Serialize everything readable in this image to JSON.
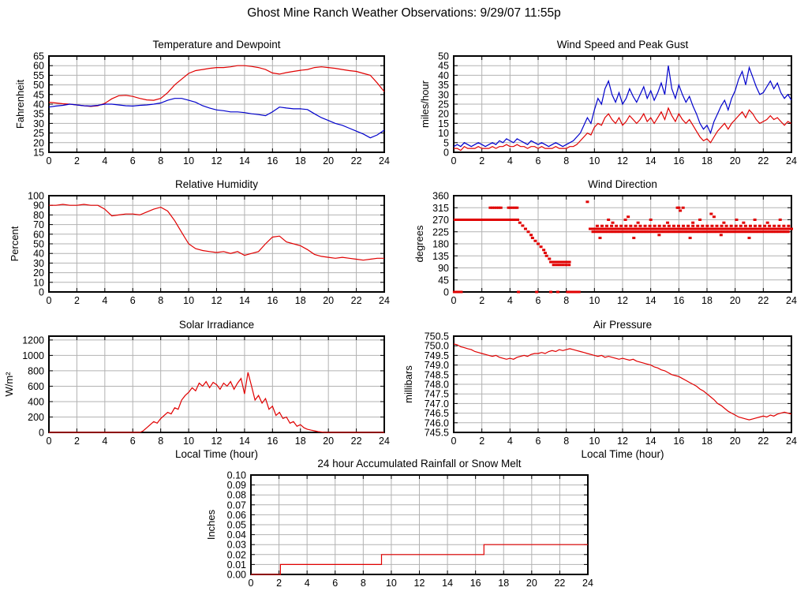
{
  "page_title": "Ghost Mine Ranch Weather Observations: 9/29/07 11:55p",
  "colors": {
    "red": "#e00000",
    "blue": "#0000cc",
    "grid": "#b2b2b2",
    "axis": "#000000",
    "background": "#ffffff"
  },
  "chart_data": [
    {
      "id": "temperature-dewpoint",
      "type": "line",
      "title": "Temperature and Dewpoint",
      "ylabel": "Fahrenheit",
      "xlabel": "",
      "xlim": [
        0,
        24
      ],
      "ylim": [
        15,
        65
      ],
      "xtick_step": 2,
      "ytick_step": 5,
      "ytick_decimals": 0,
      "series": [
        {
          "name": "temperature",
          "color": "red",
          "x0": 0,
          "dx": 0.5,
          "y": [
            41,
            40.6,
            40.2,
            40,
            39.6,
            39.2,
            38.8,
            39.2,
            40.4,
            42.8,
            44.4,
            44.6,
            44,
            43,
            42.2,
            42,
            43,
            46,
            50,
            53,
            56,
            57.4,
            58,
            58.6,
            59,
            59,
            59.4,
            60,
            60,
            59.6,
            59,
            58,
            56.2,
            55.6,
            56.4,
            57,
            57.6,
            58,
            59,
            59.4,
            59,
            58.6,
            58,
            57.4,
            57,
            56,
            55,
            51,
            46.5
          ]
        },
        {
          "name": "dewpoint",
          "color": "blue",
          "x0": 0,
          "dx": 0.5,
          "y": [
            38.5,
            39,
            39.4,
            40,
            39.6,
            39.2,
            39,
            39.4,
            40,
            40,
            39.6,
            39.2,
            39,
            39.4,
            39.6,
            40,
            40.6,
            42,
            43,
            43,
            42,
            41,
            39.2,
            38,
            37,
            36.6,
            36,
            36,
            35.6,
            35,
            34.6,
            34,
            36,
            38.5,
            38,
            37.6,
            37.6,
            37.2,
            35,
            33,
            31.5,
            30,
            29,
            27.5,
            26,
            24.5,
            22.5,
            24,
            26.5
          ]
        }
      ]
    },
    {
      "id": "wind-speed-gust",
      "type": "line",
      "title": "Wind Speed and Peak Gust",
      "ylabel": "miles/hour",
      "xlabel": "",
      "xlim": [
        0,
        24
      ],
      "ylim": [
        0,
        50
      ],
      "xtick_step": 2,
      "ytick_step": 5,
      "ytick_decimals": 0,
      "series": [
        {
          "name": "wind-speed",
          "color": "red",
          "x0": 0,
          "dx": 0.25,
          "y": [
            2,
            2,
            1,
            3,
            2,
            2,
            2,
            3,
            2,
            2,
            2,
            3,
            2,
            3,
            3,
            4,
            3,
            3,
            4,
            3,
            3,
            2,
            3,
            3,
            2,
            3,
            2,
            2,
            2,
            3,
            2,
            2,
            2,
            3,
            3,
            4,
            6,
            8,
            10,
            9,
            13,
            15,
            14,
            18,
            20,
            17,
            15,
            18,
            14,
            16,
            19,
            17,
            15,
            17,
            20,
            16,
            18,
            15,
            18,
            21,
            17,
            23,
            19,
            16,
            20,
            17,
            15,
            17,
            14,
            11,
            8,
            6,
            7,
            5,
            8,
            11,
            13,
            15,
            12,
            15,
            17,
            19,
            21,
            18,
            22,
            20,
            17,
            15,
            16,
            17,
            19,
            17,
            18,
            16,
            14,
            16,
            15
          ]
        },
        {
          "name": "peak-gust",
          "color": "blue",
          "x0": 0,
          "dx": 0.25,
          "y": [
            3,
            4,
            3,
            5,
            4,
            3,
            4,
            5,
            4,
            3,
            4,
            5,
            4,
            6,
            5,
            7,
            6,
            5,
            7,
            6,
            5,
            4,
            6,
            5,
            4,
            5,
            4,
            3,
            4,
            5,
            4,
            3,
            4,
            5,
            6,
            8,
            10,
            14,
            18,
            15,
            22,
            28,
            25,
            33,
            37,
            30,
            26,
            31,
            25,
            28,
            33,
            29,
            26,
            30,
            34,
            28,
            32,
            27,
            31,
            36,
            30,
            45,
            33,
            28,
            35,
            30,
            26,
            29,
            24,
            20,
            15,
            12,
            14,
            10,
            16,
            20,
            24,
            27,
            22,
            28,
            32,
            38,
            42,
            35,
            44,
            39,
            34,
            30,
            31,
            34,
            37,
            33,
            36,
            31,
            28,
            30,
            27
          ]
        }
      ]
    },
    {
      "id": "relative-humidity",
      "type": "line",
      "title": "Relative Humidity",
      "ylabel": "Percent",
      "xlabel": "",
      "xlim": [
        0,
        24
      ],
      "ylim": [
        0,
        100
      ],
      "xtick_step": 2,
      "ytick_step": 10,
      "ytick_decimals": 0,
      "series": [
        {
          "name": "humidity",
          "color": "red",
          "x0": 0,
          "dx": 0.5,
          "y": [
            90,
            90,
            91,
            90,
            90,
            91,
            90,
            90,
            86,
            79,
            80,
            81,
            81,
            80,
            83,
            86,
            88,
            84,
            74,
            62,
            50,
            45,
            43,
            42,
            41,
            42,
            40,
            42,
            38,
            40,
            42,
            50,
            57,
            58,
            52,
            50,
            48,
            44,
            39,
            37,
            36,
            35,
            36,
            35,
            34,
            33,
            34,
            35,
            35
          ]
        }
      ]
    },
    {
      "id": "wind-direction",
      "type": "scatter",
      "title": "Wind Direction",
      "ylabel": "degrees",
      "xlabel": "",
      "xlim": [
        0,
        24
      ],
      "ylim": [
        0,
        360
      ],
      "xtick_step": 2,
      "ytick_step": 45,
      "ytick_decimals": 0,
      "series": [
        {
          "name": "direction",
          "color": "red",
          "runs": [
            {
              "x0": 0.1,
              "x1": 4.6,
              "y": 270,
              "step": 0.12
            },
            {
              "x0": 2.6,
              "x1": 3.4,
              "y": 315,
              "step": 0.15
            },
            {
              "x0": 3.9,
              "x1": 4.5,
              "y": 315,
              "step": 0.15
            },
            {
              "x0": 6.9,
              "x1": 8.3,
              "y": 112,
              "step": 0.12
            },
            {
              "x0": 7.1,
              "x1": 8.2,
              "y": 101,
              "step": 0.22
            },
            {
              "x0": 0.05,
              "x1": 0.55,
              "y": 0,
              "step": 0.12
            },
            {
              "x0": 8.3,
              "x1": 8.9,
              "y": 0,
              "step": 0.12
            },
            {
              "x0": 9.7,
              "x1": 24,
              "y": 236,
              "step": 0.13
            },
            {
              "x0": 9.9,
              "x1": 23.9,
              "y": 225,
              "step": 0.21
            },
            {
              "x0": 10.2,
              "x1": 23.8,
              "y": 247,
              "step": 0.34
            }
          ],
          "points": [
            [
              4.6,
              0
            ],
            [
              5.9,
              0
            ],
            [
              6.9,
              0
            ],
            [
              7.4,
              0
            ],
            [
              8.1,
              0
            ],
            [
              4.7,
              259
            ],
            [
              4.9,
              248
            ],
            [
              5.1,
              236
            ],
            [
              5.3,
              225
            ],
            [
              5.5,
              213
            ],
            [
              5.6,
              202
            ],
            [
              5.8,
              191
            ],
            [
              6.0,
              180
            ],
            [
              6.2,
              169
            ],
            [
              6.4,
              157
            ],
            [
              6.5,
              146
            ],
            [
              6.6,
              135
            ],
            [
              6.8,
              124
            ],
            [
              9.5,
              337
            ],
            [
              11.0,
              270
            ],
            [
              11.3,
              259
            ],
            [
              12.2,
              270
            ],
            [
              12.4,
              281
            ],
            [
              13.1,
              259
            ],
            [
              14.0,
              270
            ],
            [
              15.2,
              259
            ],
            [
              15.9,
              315
            ],
            [
              16.0,
              315
            ],
            [
              16.1,
              304
            ],
            [
              16.3,
              315
            ],
            [
              17.0,
              259
            ],
            [
              17.5,
              270
            ],
            [
              18.3,
              292
            ],
            [
              18.5,
              281
            ],
            [
              19.2,
              259
            ],
            [
              20.1,
              270
            ],
            [
              20.6,
              259
            ],
            [
              21.4,
              270
            ],
            [
              22.3,
              259
            ],
            [
              23.2,
              270
            ],
            [
              10.4,
              202
            ],
            [
              12.8,
              202
            ],
            [
              14.6,
              213
            ],
            [
              16.8,
              202
            ],
            [
              19.0,
              213
            ],
            [
              21.0,
              202
            ]
          ]
        }
      ]
    },
    {
      "id": "solar-irradiance",
      "type": "line",
      "title": "Solar Irradiance",
      "ylabel": "W/m²",
      "xlabel": "Local Time (hour)",
      "xlim": [
        0,
        24
      ],
      "ylim": [
        0,
        1250
      ],
      "xtick_step": 2,
      "ytick_step": 200,
      "ytick_decimals": 0,
      "series": [
        {
          "name": "irradiance",
          "color": "red",
          "x0": 0,
          "dx": 0.25,
          "y": [
            0,
            0,
            0,
            0,
            0,
            0,
            0,
            0,
            0,
            0,
            0,
            0,
            0,
            0,
            0,
            0,
            0,
            0,
            0,
            0,
            0,
            0,
            0,
            0,
            0,
            0,
            0,
            20,
            60,
            100,
            140,
            120,
            180,
            220,
            260,
            240,
            320,
            300,
            420,
            480,
            520,
            580,
            540,
            640,
            600,
            660,
            580,
            650,
            620,
            560,
            640,
            600,
            660,
            560,
            640,
            700,
            500,
            780,
            600,
            420,
            480,
            380,
            440,
            300,
            340,
            220,
            260,
            180,
            200,
            120,
            140,
            80,
            100,
            60,
            40,
            30,
            20,
            10,
            5,
            0,
            0,
            0,
            0,
            0,
            0,
            0,
            0,
            0,
            0,
            0,
            0,
            0,
            0,
            0,
            0,
            0,
            0
          ]
        }
      ]
    },
    {
      "id": "air-pressure",
      "type": "line",
      "title": "Air Pressure",
      "ylabel": "millibars",
      "xlabel": "Local Time (hour)",
      "xlim": [
        0,
        24
      ],
      "ylim": [
        745.5,
        750.5
      ],
      "xtick_step": 2,
      "ytick_step": 0.5,
      "ytick_decimals": 1,
      "series": [
        {
          "name": "pressure",
          "color": "red",
          "x0": 0,
          "dx": 0.25,
          "y": [
            750.1,
            750.05,
            749.95,
            749.9,
            749.85,
            749.8,
            749.7,
            749.65,
            749.6,
            749.55,
            749.5,
            749.45,
            749.5,
            749.4,
            749.35,
            749.3,
            749.35,
            749.3,
            749.4,
            749.45,
            749.5,
            749.45,
            749.55,
            749.6,
            749.6,
            749.65,
            749.6,
            749.7,
            749.75,
            749.7,
            749.8,
            749.75,
            749.8,
            749.85,
            749.8,
            749.75,
            749.7,
            749.65,
            749.6,
            749.55,
            749.5,
            749.45,
            749.5,
            749.4,
            749.45,
            749.4,
            749.35,
            749.3,
            749.35,
            749.3,
            749.25,
            749.3,
            749.2,
            749.15,
            749.1,
            749.05,
            749.0,
            748.9,
            748.85,
            748.75,
            748.7,
            748.6,
            748.5,
            748.45,
            748.4,
            748.3,
            748.2,
            748.1,
            748.0,
            747.9,
            747.75,
            747.65,
            747.5,
            747.35,
            747.2,
            747.0,
            746.9,
            746.75,
            746.6,
            746.5,
            746.4,
            746.3,
            746.25,
            746.2,
            746.15,
            746.2,
            746.25,
            746.3,
            746.35,
            746.3,
            746.4,
            746.35,
            746.45,
            746.5,
            746.55,
            746.5,
            746.45
          ]
        }
      ]
    },
    {
      "id": "rainfall",
      "type": "line",
      "title": "24 hour Accumulated Rainfall or Snow Melt",
      "ylabel": "Inches",
      "xlabel": "",
      "xlim": [
        0,
        24
      ],
      "ylim": [
        0,
        0.1
      ],
      "xtick_step": 2,
      "ytick_step": 0.01,
      "ytick_decimals": 2,
      "series": [
        {
          "name": "accumulated-rainfall",
          "color": "red",
          "x": [
            0,
            2.1,
            2.1,
            9.3,
            9.3,
            16.6,
            16.6,
            24
          ],
          "y": [
            0,
            0,
            0.01,
            0.01,
            0.02,
            0.02,
            0.03,
            0.03
          ]
        }
      ]
    }
  ]
}
